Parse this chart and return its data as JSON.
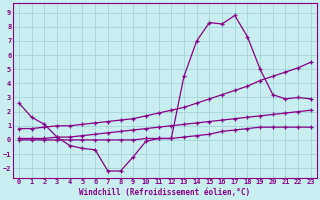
{
  "background_color": "#c8eef0",
  "grid_color": "#a8d8dc",
  "line_color": "#880088",
  "xlabel": "Windchill (Refroidissement éolien,°C)",
  "xlim": [
    -0.5,
    23.5
  ],
  "ylim": [
    -2.7,
    9.7
  ],
  "xticks": [
    0,
    1,
    2,
    3,
    4,
    5,
    6,
    7,
    8,
    9,
    10,
    11,
    12,
    13,
    14,
    15,
    16,
    17,
    18,
    19,
    20,
    21,
    22,
    23
  ],
  "yticks": [
    -2,
    -1,
    0,
    1,
    2,
    3,
    4,
    5,
    6,
    7,
    8,
    9
  ],
  "series1_x": [
    0,
    1,
    2,
    3,
    4,
    5,
    6,
    7,
    8,
    9,
    10,
    11,
    12,
    13,
    14,
    15,
    16,
    17,
    18,
    19,
    20,
    21,
    22,
    23
  ],
  "series1_y": [
    2.6,
    1.6,
    1.1,
    0.2,
    -0.4,
    -0.6,
    -0.7,
    -2.2,
    -2.2,
    -1.2,
    -0.1,
    0.1,
    0.1,
    4.5,
    7.0,
    8.3,
    8.2,
    8.8,
    7.3,
    5.0,
    3.2,
    2.9,
    3.0,
    2.9
  ],
  "series2_x": [
    0,
    1,
    2,
    3,
    4,
    5,
    6,
    7,
    8,
    9,
    10,
    11,
    12,
    13,
    14,
    15,
    16,
    17,
    18,
    19,
    20,
    21,
    22,
    23
  ],
  "series2_y": [
    0.8,
    0.8,
    0.9,
    1.0,
    1.0,
    1.1,
    1.2,
    1.3,
    1.4,
    1.5,
    1.7,
    1.9,
    2.1,
    2.3,
    2.6,
    2.9,
    3.2,
    3.5,
    3.8,
    4.2,
    4.5,
    4.8,
    5.1,
    5.5
  ],
  "series3_x": [
    0,
    1,
    2,
    3,
    4,
    5,
    6,
    7,
    8,
    9,
    10,
    11,
    12,
    13,
    14,
    15,
    16,
    17,
    18,
    19,
    20,
    21,
    22,
    23
  ],
  "series3_y": [
    0.1,
    0.1,
    0.1,
    0.2,
    0.2,
    0.3,
    0.4,
    0.5,
    0.6,
    0.7,
    0.8,
    0.9,
    1.0,
    1.1,
    1.2,
    1.3,
    1.4,
    1.5,
    1.6,
    1.7,
    1.8,
    1.9,
    2.0,
    2.1
  ],
  "series4_x": [
    0,
    1,
    2,
    3,
    4,
    5,
    6,
    7,
    8,
    9,
    10,
    11,
    12,
    13,
    14,
    15,
    16,
    17,
    18,
    19,
    20,
    21,
    22,
    23
  ],
  "series4_y": [
    0.0,
    0.0,
    0.0,
    0.0,
    0.0,
    0.0,
    0.0,
    0.0,
    0.0,
    0.0,
    0.1,
    0.1,
    0.1,
    0.2,
    0.3,
    0.4,
    0.6,
    0.7,
    0.8,
    0.9,
    0.9,
    0.9,
    0.9,
    0.9
  ]
}
